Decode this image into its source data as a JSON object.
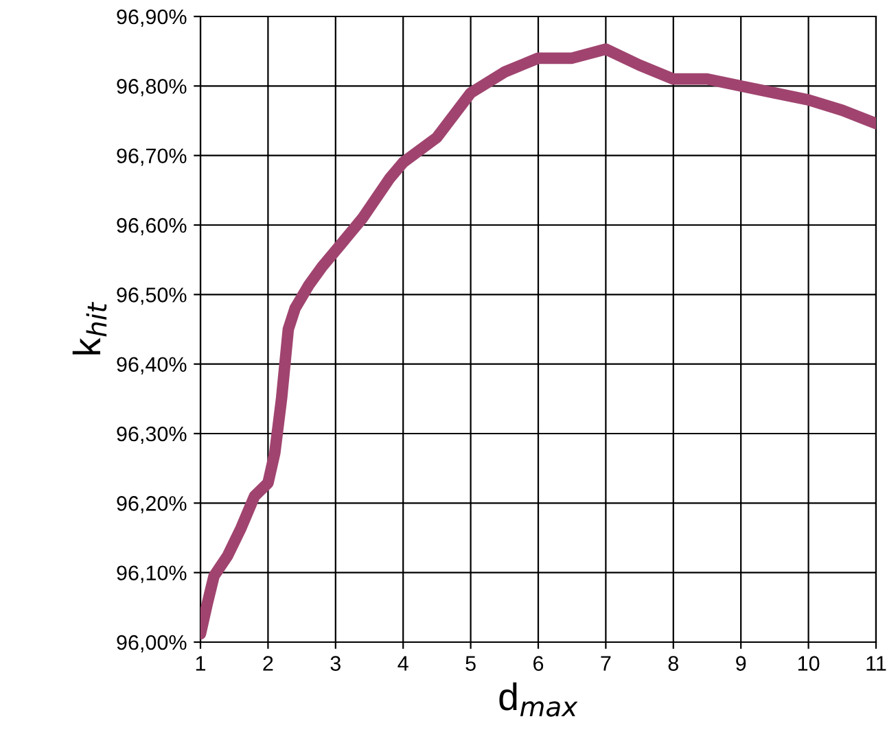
{
  "chart_data": {
    "type": "line",
    "xlabel": "d$_{max}$",
    "ylabel": "k$_{hit}$",
    "x": [
      1.0,
      1.1,
      1.2,
      1.4,
      1.6,
      1.8,
      2.0,
      2.1,
      2.2,
      2.3,
      2.4,
      2.6,
      2.8,
      3.0,
      3.4,
      3.8,
      4.0,
      4.5,
      5.0,
      5.5,
      6.0,
      6.5,
      7.0,
      7.5,
      8.0,
      8.5,
      9.0,
      9.5,
      10.0,
      10.5,
      11.0
    ],
    "series": [
      {
        "color": "#a0446f",
        "values": [
          96.012,
          96.055,
          96.095,
          96.124,
          96.164,
          96.21,
          96.229,
          96.272,
          96.35,
          96.45,
          96.48,
          96.513,
          96.54,
          96.563,
          96.61,
          96.667,
          96.69,
          96.726,
          96.79,
          96.82,
          96.84,
          96.84,
          96.853,
          96.83,
          96.81,
          96.81,
          96.8,
          96.79,
          96.78,
          96.765,
          96.746
        ]
      }
    ],
    "xlim": [
      1,
      11
    ],
    "xticks": [
      1,
      2,
      3,
      4,
      5,
      6,
      7,
      8,
      9,
      10,
      11
    ],
    "ylim": [
      96.0,
      96.9
    ],
    "yticks": [
      {
        "value": 96.0,
        "label": "96,00%"
      },
      {
        "value": 96.1,
        "label": "96,10%"
      },
      {
        "value": 96.2,
        "label": "96,20%"
      },
      {
        "value": 96.3,
        "label": "96,30%"
      },
      {
        "value": 96.4,
        "label": "96,40%"
      },
      {
        "value": 96.5,
        "label": "96,50%"
      },
      {
        "value": 96.6,
        "label": "96,60%"
      },
      {
        "value": 96.7,
        "label": "96,70%"
      },
      {
        "value": 96.8,
        "label": "96,80%"
      },
      {
        "value": 96.9,
        "label": "96,90%"
      }
    ],
    "grid": true,
    "marker": "none",
    "line_style": "solid",
    "legend": false
  }
}
